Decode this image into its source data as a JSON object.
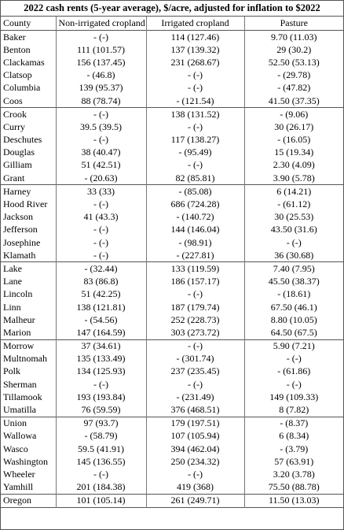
{
  "title": "2022 cash rents (5-year average), $/acre, adjusted for inflation to $2022",
  "table": {
    "header": [
      "County",
      "Non-irrigated cropland",
      "Irrigated cropland",
      "Pasture"
    ],
    "groups": [
      {
        "rows": [
          [
            "Baker",
            "- (-)",
            "114 (127.46)",
            "9.70 (11.03)"
          ],
          [
            "Benton",
            "111 (101.57)",
            "137 (139.32)",
            "29 (30.2)"
          ],
          [
            "Clackamas",
            "156 (137.45)",
            "231 (268.67)",
            "52.50 (53.13)"
          ],
          [
            "Clatsop",
            "- (46.8)",
            "- (-)",
            "- (29.78)"
          ],
          [
            "Columbia",
            "139 (95.37)",
            "- (-)",
            "- (47.82)"
          ],
          [
            "Coos",
            "88 (78.74)",
            "- (121.54)",
            "41.50 (37.35)"
          ]
        ]
      },
      {
        "rows": [
          [
            "Crook",
            "- (-)",
            "138 (131.52)",
            "- (9.06)"
          ],
          [
            "Curry",
            "39.5 (39.5)",
            "- (-)",
            "30 (26.17)"
          ],
          [
            "Deschutes",
            "- (-)",
            "117 (138.27)",
            "- (16.05)"
          ],
          [
            "Douglas",
            "38 (40.47)",
            "- (95.49)",
            "15 (19.34)"
          ],
          [
            "Gilliam",
            "51 (42.51)",
            "- (-)",
            "2.30 (4.09)"
          ],
          [
            "Grant",
            "- (20.63)",
            "82 (85.81)",
            "3.90 (5.78)"
          ]
        ]
      },
      {
        "rows": [
          [
            "Harney",
            "33 (33)",
            "- (85.08)",
            "6 (14.21)"
          ],
          [
            "Hood River",
            "- (-)",
            "686 (724.28)",
            "- (61.12)"
          ],
          [
            "Jackson",
            "41 (43.3)",
            "- (140.72)",
            "30 (25.53)"
          ],
          [
            "Jefferson",
            "- (-)",
            "144 (146.04)",
            "43.50 (31.6)"
          ],
          [
            "Josephine",
            "- (-)",
            "- (98.91)",
            "- (-)"
          ],
          [
            "Klamath",
            "- (-)",
            "- (227.81)",
            "36 (30.68)"
          ]
        ]
      },
      {
        "rows": [
          [
            "Lake",
            "- (32.44)",
            "133 (119.59)",
            "7.40 (7.95)"
          ],
          [
            "Lane",
            "83 (86.8)",
            "186 (157.17)",
            "45.50 (38.37)"
          ],
          [
            "Lincoln",
            "51 (42.25)",
            "- (-)",
            "- (18.61)"
          ],
          [
            "Linn",
            "138 (121.81)",
            "187 (179.74)",
            "67.50 (46.1)"
          ],
          [
            "Malheur",
            "- (54.56)",
            "252 (228.73)",
            "8.80 (10.05)"
          ],
          [
            "Marion",
            "147 (164.59)",
            "303 (273.72)",
            "64.50 (67.5)"
          ]
        ]
      },
      {
        "rows": [
          [
            "Morrow",
            "37 (34.61)",
            "- (-)",
            "5.90 (7.21)"
          ],
          [
            "Multnomah",
            "135 (133.49)",
            "- (301.74)",
            "- (-)"
          ],
          [
            "Polk",
            "134 (125.93)",
            "237 (235.45)",
            "- (61.86)"
          ],
          [
            "Sherman",
            "- (-)",
            "- (-)",
            "- (-)"
          ],
          [
            "Tillamook",
            "193 (193.84)",
            "- (231.49)",
            "149 (109.33)"
          ],
          [
            "Umatilla",
            "76 (59.59)",
            "376 (468.51)",
            "8 (7.82)"
          ]
        ]
      },
      {
        "rows": [
          [
            "Union",
            "97 (93.7)",
            "179 (197.51)",
            "- (8.37)"
          ],
          [
            "Wallowa",
            "- (58.79)",
            "107 (105.94)",
            "6 (8.34)"
          ],
          [
            "Wasco",
            "59.5 (41.91)",
            "394 (462.04)",
            "- (3.79)"
          ],
          [
            "Washington",
            "145 (136.55)",
            "250 (234.32)",
            "57 (63.91)"
          ],
          [
            "Wheeler",
            "- (-)",
            "- (-)",
            "3.20 (3.78)"
          ],
          [
            "Yamhill",
            "201 (184.38)",
            "419 (368)",
            "75.50 (88.78)"
          ]
        ]
      }
    ],
    "total": [
      "Oregon",
      "101 (105.14)",
      "261 (249.71)",
      "11.50 (13.03)"
    ]
  }
}
